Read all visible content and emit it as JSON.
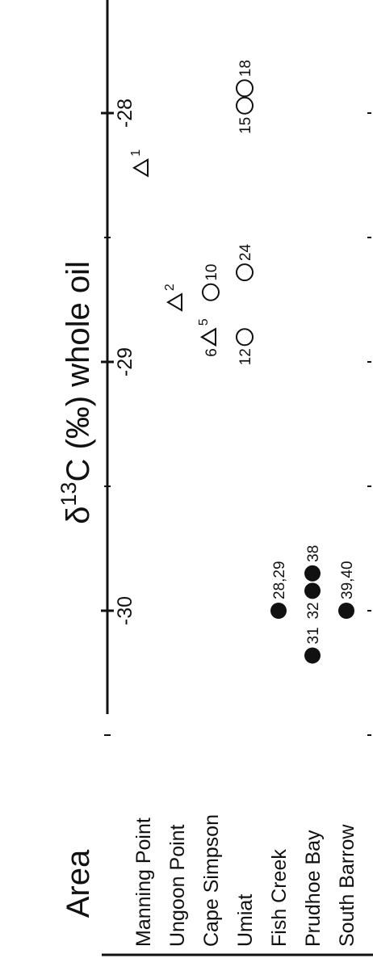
{
  "chart_data": {
    "type": "scatter",
    "orientation": "rotated-90-ccw",
    "title_prefix": "δ",
    "title_sup": "13",
    "title_main": "C (‰) whole oil",
    "category_axis_title": "Area",
    "categories": [
      "Manning Point",
      "Ungoon Point",
      "Cape Simpson",
      "Umiat",
      "Fish Creek",
      "Prudhoe Bay",
      "South Barrow"
    ],
    "x_ticks": [
      "-30",
      "-29",
      "-28"
    ],
    "x_range": [
      -30.5,
      -27.4
    ],
    "points": [
      {
        "category": "Manning Point",
        "x": -28.22,
        "marker": "triangle",
        "label": "1",
        "label_sup": true
      },
      {
        "category": "Ungoon Point",
        "x": -28.76,
        "marker": "triangle",
        "label": "2",
        "label_sup": true
      },
      {
        "category": "Cape Simpson",
        "x": -28.9,
        "marker": "triangle",
        "label": "6",
        "label_pos": "before"
      },
      {
        "category": "Cape Simpson",
        "x": -28.9,
        "marker": "triangle",
        "label": "5",
        "label_sup": true
      },
      {
        "category": "Cape Simpson",
        "x": -28.72,
        "marker": "circle-open",
        "label": "10"
      },
      {
        "category": "Umiat",
        "x": -28.9,
        "marker": "circle-open",
        "label": "12",
        "label_pos": "before"
      },
      {
        "category": "Umiat",
        "x": -28.64,
        "marker": "circle-open",
        "label": "24"
      },
      {
        "category": "Umiat",
        "x": -27.97,
        "marker": "circle-open",
        "label": "15",
        "label_pos": "before"
      },
      {
        "category": "Umiat",
        "x": -27.9,
        "marker": "circle-open",
        "label": "18"
      },
      {
        "category": "Fish Creek",
        "x": -30.0,
        "marker": "circle-filled",
        "label": "28,29"
      },
      {
        "category": "Prudhoe Bay",
        "x": -30.18,
        "marker": "circle-filled",
        "label": "31"
      },
      {
        "category": "Prudhoe Bay",
        "x": -29.92,
        "marker": "circle-filled",
        "label": "32",
        "label_pos": "before"
      },
      {
        "category": "Prudhoe Bay",
        "x": -29.85,
        "marker": "circle-filled",
        "label": "38"
      },
      {
        "category": "South Barrow",
        "x": -30.0,
        "marker": "circle-filled",
        "label": "39,40"
      }
    ]
  }
}
